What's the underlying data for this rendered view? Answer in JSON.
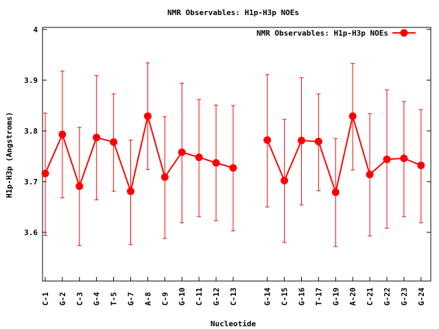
{
  "chart_data": {
    "type": "line",
    "title": "NMR Observables: H1p-H3p NOEs",
    "xlabel": "Nucleotide",
    "ylabel": "H1p-H3p (Angstroms)",
    "ylim": [
      3.5,
      4.0
    ],
    "yticks": [
      "4",
      "3.9",
      "3.8",
      "3.7",
      "3.6"
    ],
    "yticks_values": [
      4.0,
      3.9,
      3.8,
      3.7,
      3.6
    ],
    "legend": {
      "label": "NMR Observables: H1p-H3p NOEs",
      "placement": "top-right"
    },
    "grid": false,
    "series_color": "#ff0000",
    "categories": [
      "C-1",
      "G-2",
      "C-3",
      "G-4",
      "T-5",
      "G-7",
      "A-8",
      "C-9",
      "G-10",
      "C-11",
      "G-12",
      "C-13",
      "G-14",
      "C-15",
      "G-16",
      "T-17",
      "G-19",
      "A-20",
      "C-21",
      "G-22",
      "G-23",
      "G-24"
    ],
    "segments": [
      [
        0,
        11
      ],
      [
        12,
        21
      ]
    ],
    "slot_index": [
      0,
      1,
      2,
      3,
      4,
      5,
      6,
      7,
      8,
      9,
      10,
      11,
      13,
      14,
      15,
      16,
      17,
      18,
      19,
      20,
      21,
      22
    ],
    "values": [
      3.716,
      3.793,
      3.691,
      3.787,
      3.778,
      3.681,
      3.829,
      3.709,
      3.758,
      3.748,
      3.737,
      3.727,
      3.782,
      3.702,
      3.781,
      3.779,
      3.679,
      3.829,
      3.714,
      3.744,
      3.746,
      3.732
    ],
    "err_high": [
      3.835,
      3.918,
      3.807,
      3.909,
      3.873,
      3.782,
      3.934,
      3.828,
      3.894,
      3.862,
      3.851,
      3.85,
      3.911,
      3.823,
      3.905,
      3.873,
      3.785,
      3.933,
      3.834,
      3.881,
      3.858,
      3.842
    ],
    "err_low": [
      3.594,
      3.668,
      3.574,
      3.664,
      3.681,
      3.576,
      3.724,
      3.588,
      3.619,
      3.631,
      3.623,
      3.603,
      3.65,
      3.58,
      3.654,
      3.682,
      3.572,
      3.723,
      3.593,
      3.608,
      3.631,
      3.619
    ]
  }
}
